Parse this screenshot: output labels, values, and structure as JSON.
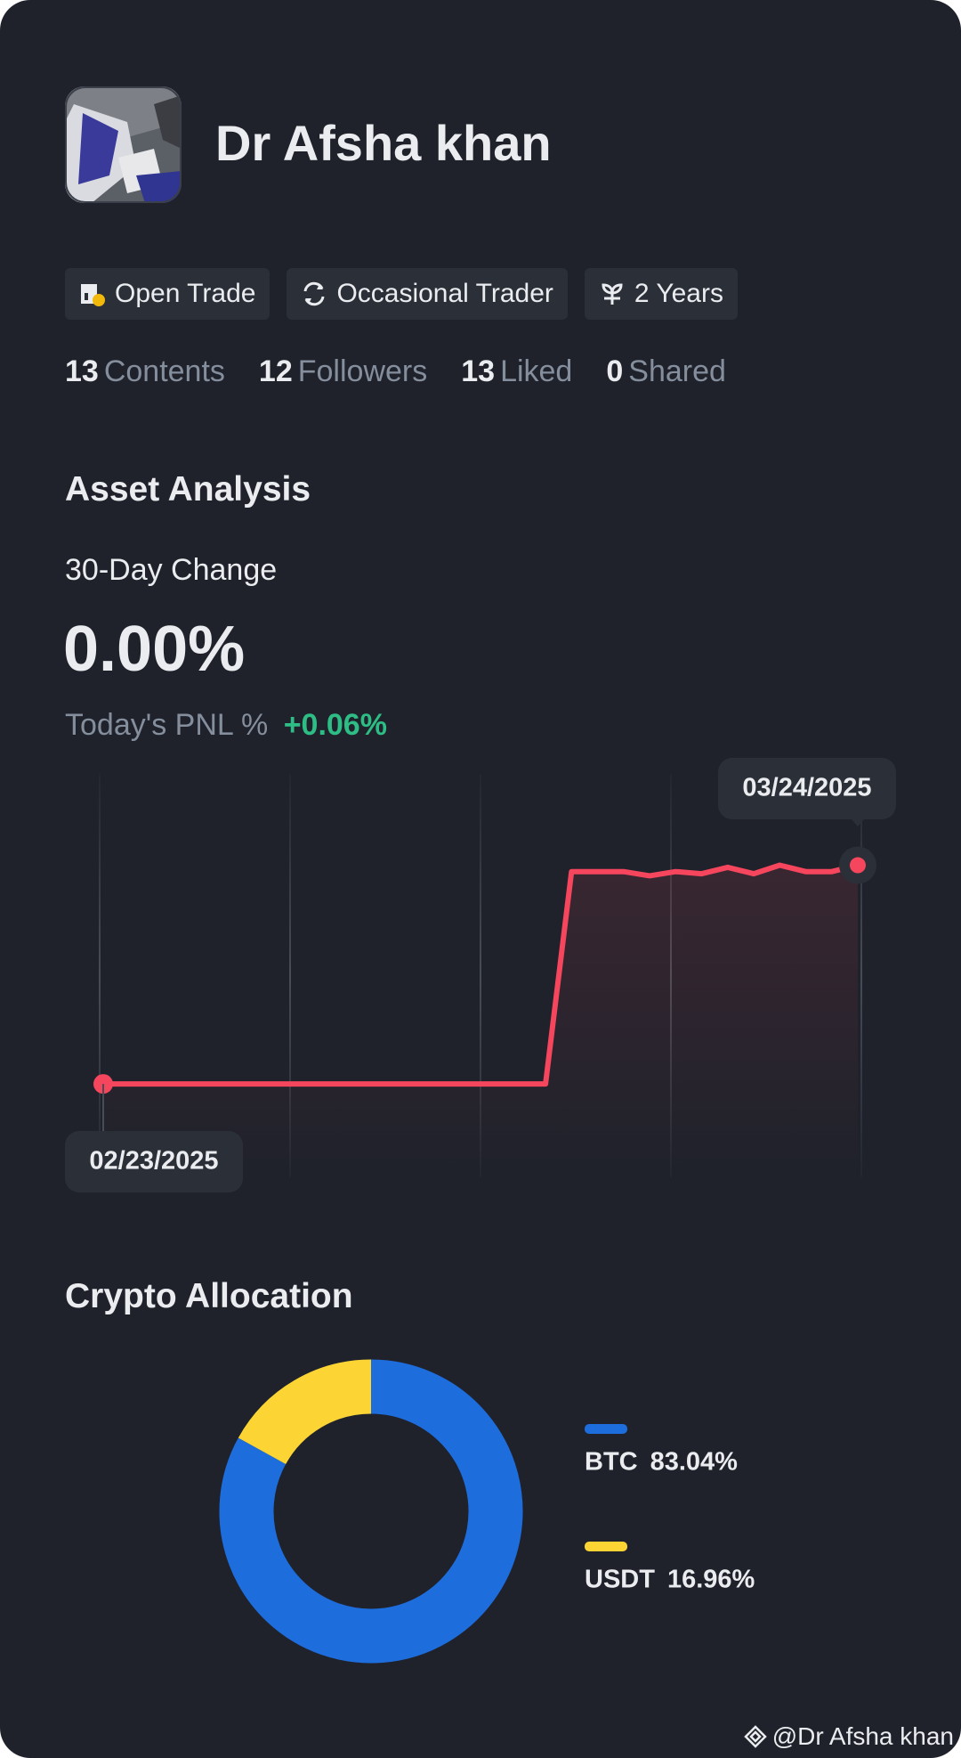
{
  "profile": {
    "name": "Dr Afsha khan"
  },
  "tags": [
    "Open Trade",
    "Occasional Trader",
    "2 Years"
  ],
  "stats": [
    {
      "value": 13,
      "label": "Contents"
    },
    {
      "value": 12,
      "label": "Followers"
    },
    {
      "value": 13,
      "label": "Liked"
    },
    {
      "value": 0,
      "label": "Shared"
    }
  ],
  "chart_data": [
    {
      "type": "line",
      "title": "Asset Analysis",
      "subtitle": "30-Day Change",
      "headline": "0.00%",
      "pnl_label": "Today's PNL %",
      "pnl_value": "+0.06%",
      "x": [
        "02/23/2025",
        null,
        null,
        null,
        null,
        null,
        null,
        null,
        null,
        null,
        null,
        null,
        null,
        null,
        null,
        null,
        null,
        null,
        null,
        null,
        null,
        null,
        null,
        null,
        null,
        null,
        null,
        null,
        null,
        "03/24/2025"
      ],
      "series": [
        {
          "color": "#f6465d",
          "values": [
            0,
            0,
            0,
            0,
            0,
            0,
            0,
            0,
            0,
            0,
            0,
            0,
            0,
            0,
            0,
            0,
            0,
            0,
            100,
            100,
            100,
            98,
            100,
            99,
            102,
            99,
            103,
            100,
            100,
            103
          ]
        }
      ],
      "ylim": [
        -44,
        146
      ]
    },
    {
      "type": "pie",
      "title": "Crypto Allocation",
      "categories": [
        "BTC",
        "USDT"
      ],
      "values": [
        83.04,
        16.96
      ],
      "value_labels": [
        "83.04%",
        "16.96%"
      ],
      "colors": [
        "#1e6ddc",
        "#fcd535"
      ]
    }
  ],
  "watermark": "@Dr Afsha khan"
}
